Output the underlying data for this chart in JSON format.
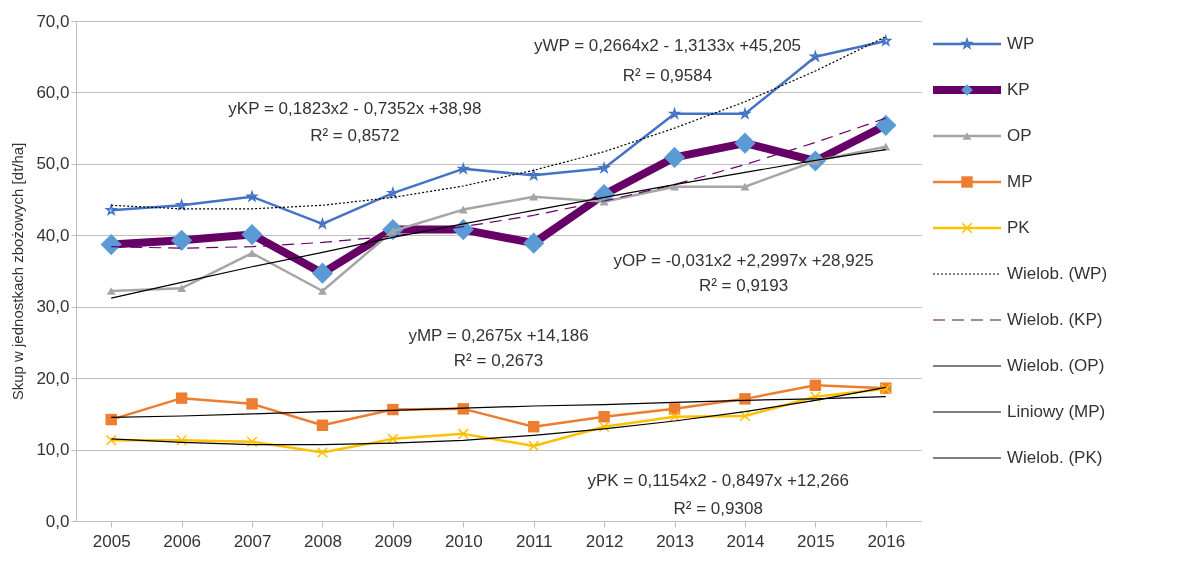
{
  "chart_data": {
    "type": "line",
    "ylabel": "Skup w jednostkach zbożowych [dt/ha]",
    "categories": [
      "2005",
      "2006",
      "2007",
      "2008",
      "2009",
      "2010",
      "2011",
      "2012",
      "2013",
      "2014",
      "2015",
      "2016"
    ],
    "ylim": [
      0,
      70
    ],
    "yticks": [
      {
        "value": 0,
        "label": "0,0"
      },
      {
        "value": 10,
        "label": "10,0"
      },
      {
        "value": 20,
        "label": "20,0"
      },
      {
        "value": 30,
        "label": "30,0"
      },
      {
        "value": 40,
        "label": "40,0"
      },
      {
        "value": 50,
        "label": "50,0"
      },
      {
        "value": 60,
        "label": "60,0"
      },
      {
        "value": 70,
        "label": "70,0"
      }
    ],
    "grid": "y",
    "legend": "right",
    "series": [
      {
        "name": "WP",
        "color": "#4472c4",
        "marker": "star",
        "line_style": "solid",
        "values": [
          43.5,
          44.2,
          45.4,
          41.6,
          45.9,
          49.3,
          48.4,
          49.4,
          57.0,
          57.0,
          65.0,
          67.2
        ]
      },
      {
        "name": "KP",
        "color": "#660066",
        "colors": [
          "#5b9bd5",
          "#5b9bd5",
          "#5b9bd5",
          "#5b9bd5",
          "#5b9bd5",
          "#5b9bd5",
          "#5b9bd5",
          "#5b9bd5",
          "#5b9bd5",
          "#5b9bd5",
          "#5b9bd5",
          "#5b9bd5"
        ],
        "marker": "diamond",
        "line_style": "solid",
        "values": [
          38.7,
          39.3,
          40.1,
          34.7,
          40.8,
          40.8,
          38.9,
          45.7,
          50.9,
          52.9,
          50.4,
          55.4
        ]
      },
      {
        "name": "OP",
        "color": "#a5a5a5",
        "marker": "triangle",
        "line_style": "solid",
        "values": [
          32.2,
          32.6,
          37.5,
          32.2,
          40.6,
          43.6,
          45.4,
          44.7,
          46.8,
          46.8,
          50.4,
          52.4
        ]
      },
      {
        "name": "MP",
        "color": "#ed7d31",
        "marker": "square",
        "line_style": "solid",
        "values": [
          14.2,
          17.2,
          16.4,
          13.4,
          15.6,
          15.7,
          13.2,
          14.6,
          15.7,
          17.1,
          19.0,
          18.6
        ]
      },
      {
        "name": "PK",
        "color": "#ffc000",
        "marker": "cross",
        "line_style": "solid",
        "values": [
          11.3,
          11.3,
          11.1,
          9.6,
          11.5,
          12.2,
          10.5,
          13.2,
          14.6,
          14.7,
          17.4,
          18.5
        ]
      },
      {
        "name": "Wielob. (WP)",
        "color": "#000000",
        "marker": "none",
        "line_style": "dotted",
        "values": [
          44.2,
          43.7,
          43.7,
          44.2,
          45.3,
          46.9,
          49.1,
          51.7,
          55.0,
          58.7,
          63.0,
          67.8
        ]
      },
      {
        "name": "Wielob. (KP)",
        "color": "#660066",
        "marker": "none",
        "line_style": "dashed",
        "values": [
          38.4,
          38.2,
          38.4,
          39.0,
          39.9,
          41.2,
          42.8,
          44.8,
          47.1,
          49.9,
          53.0,
          56.4
        ]
      },
      {
        "name": "Wielob. (OP)",
        "color": "#000000",
        "marker": "none",
        "line_style": "solid",
        "values": [
          31.2,
          33.4,
          35.6,
          37.6,
          39.7,
          41.6,
          43.5,
          45.3,
          47.1,
          48.8,
          50.5,
          52.0
        ]
      },
      {
        "name": "Liniowy (MP)",
        "color": "#000000",
        "marker": "none",
        "line_style": "solid",
        "values": [
          14.5,
          14.7,
          15.0,
          15.3,
          15.5,
          15.8,
          16.1,
          16.3,
          16.6,
          16.9,
          17.1,
          17.4
        ]
      },
      {
        "name": "Wielob. (PK)",
        "color": "#000000",
        "marker": "none",
        "line_style": "solid",
        "values": [
          11.5,
          11.0,
          10.7,
          10.7,
          10.9,
          11.3,
          12.0,
          12.9,
          14.0,
          15.3,
          16.9,
          18.7
        ]
      }
    ],
    "annotations": [
      "yWP = 0,2664x2 - 1,3133x +45,205",
      "R² = 0,9584",
      "yKP = 0,1823x2 - 0,7352x +38,98",
      "R² = 0,8572",
      "yOP = -0,031x2 +2,2997x +28,925",
      "R² = 0,9193",
      "yMP = 0,2675x +14,186",
      "R² = 0,2673",
      "yPK = 0,1154x2 - 0,8497x +12,266",
      "R² = 0,9308"
    ]
  }
}
